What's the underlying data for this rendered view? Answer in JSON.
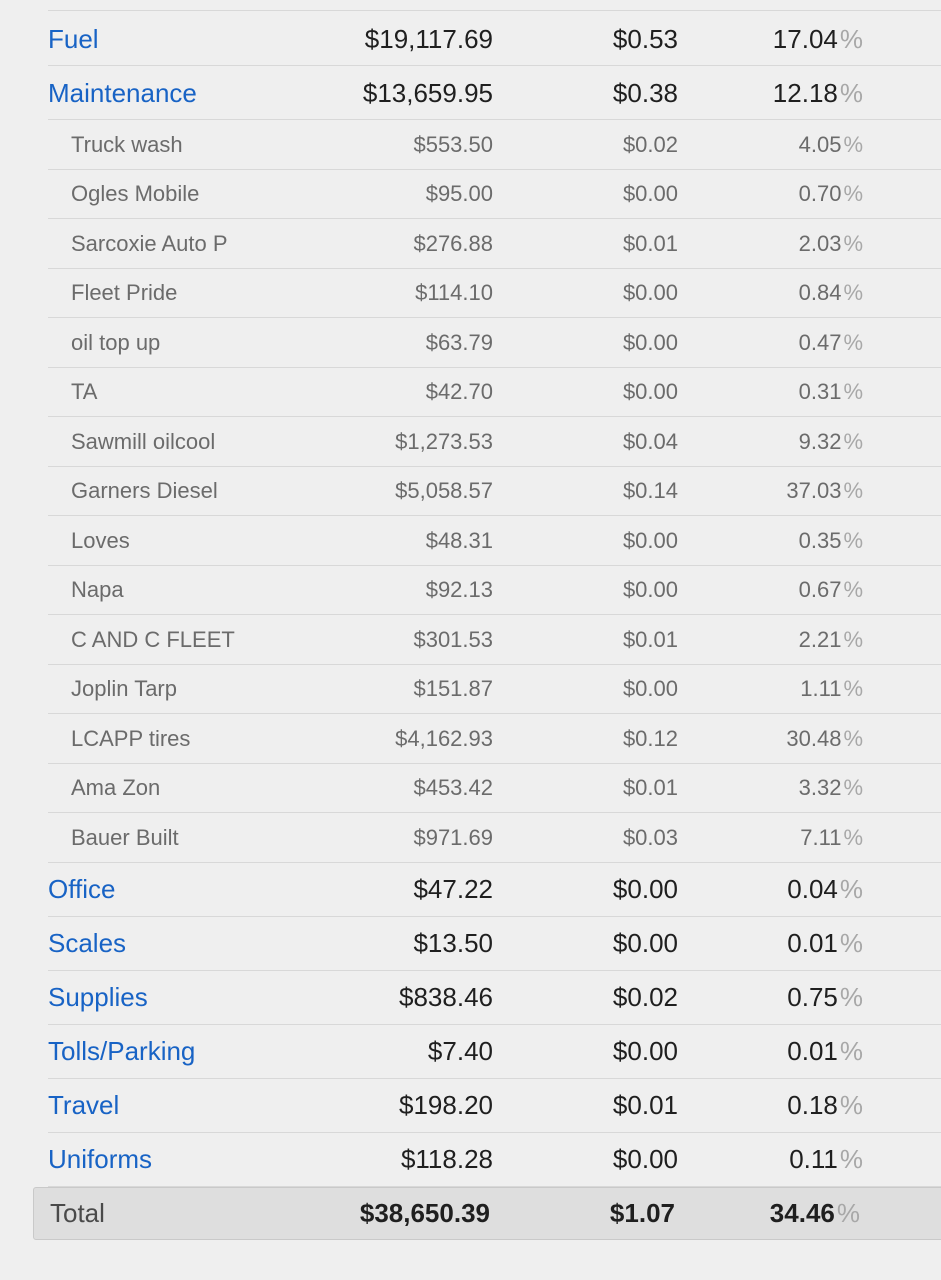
{
  "rows": [
    {
      "type": "cat",
      "name": "Fuel",
      "amount": "$19,117.69",
      "per_mile": "$0.53",
      "percent": "17.04"
    },
    {
      "type": "cat",
      "name": "Maintenance",
      "amount": "$13,659.95",
      "per_mile": "$0.38",
      "percent": "12.18"
    },
    {
      "type": "sub",
      "name": "Truck wash",
      "amount": "$553.50",
      "per_mile": "$0.02",
      "percent": "4.05"
    },
    {
      "type": "sub",
      "name": "Ogles Mobile",
      "amount": "$95.00",
      "per_mile": "$0.00",
      "percent": "0.70"
    },
    {
      "type": "sub",
      "name": "Sarcoxie Auto P",
      "amount": "$276.88",
      "per_mile": "$0.01",
      "percent": "2.03"
    },
    {
      "type": "sub",
      "name": "Fleet Pride",
      "amount": "$114.10",
      "per_mile": "$0.00",
      "percent": "0.84"
    },
    {
      "type": "sub",
      "name": "oil top up",
      "amount": "$63.79",
      "per_mile": "$0.00",
      "percent": "0.47"
    },
    {
      "type": "sub",
      "name": "TA",
      "amount": "$42.70",
      "per_mile": "$0.00",
      "percent": "0.31"
    },
    {
      "type": "sub",
      "name": "Sawmill oilcool",
      "amount": "$1,273.53",
      "per_mile": "$0.04",
      "percent": "9.32"
    },
    {
      "type": "sub",
      "name": "Garners Diesel",
      "amount": "$5,058.57",
      "per_mile": "$0.14",
      "percent": "37.03"
    },
    {
      "type": "sub",
      "name": "Loves",
      "amount": "$48.31",
      "per_mile": "$0.00",
      "percent": "0.35"
    },
    {
      "type": "sub",
      "name": "Napa",
      "amount": "$92.13",
      "per_mile": "$0.00",
      "percent": "0.67"
    },
    {
      "type": "sub",
      "name": "C AND C FLEET",
      "amount": "$301.53",
      "per_mile": "$0.01",
      "percent": "2.21"
    },
    {
      "type": "sub",
      "name": "Joplin Tarp",
      "amount": "$151.87",
      "per_mile": "$0.00",
      "percent": "1.11"
    },
    {
      "type": "sub",
      "name": "LCAPP tires",
      "amount": "$4,162.93",
      "per_mile": "$0.12",
      "percent": "30.48"
    },
    {
      "type": "sub",
      "name": "Ama Zon",
      "amount": "$453.42",
      "per_mile": "$0.01",
      "percent": "3.32"
    },
    {
      "type": "sub",
      "name": "Bauer Built",
      "amount": "$971.69",
      "per_mile": "$0.03",
      "percent": "7.11"
    },
    {
      "type": "cat",
      "name": "Office",
      "amount": "$47.22",
      "per_mile": "$0.00",
      "percent": "0.04"
    },
    {
      "type": "cat",
      "name": "Scales",
      "amount": "$13.50",
      "per_mile": "$0.00",
      "percent": "0.01"
    },
    {
      "type": "cat",
      "name": "Supplies",
      "amount": "$838.46",
      "per_mile": "$0.02",
      "percent": "0.75"
    },
    {
      "type": "cat",
      "name": "Tolls/Parking",
      "amount": "$7.40",
      "per_mile": "$0.00",
      "percent": "0.01"
    },
    {
      "type": "cat",
      "name": "Travel",
      "amount": "$198.20",
      "per_mile": "$0.01",
      "percent": "0.18"
    },
    {
      "type": "cat",
      "name": "Uniforms",
      "amount": "$118.28",
      "per_mile": "$0.00",
      "percent": "0.11"
    }
  ],
  "percent_sign": "%",
  "total": {
    "label": "Total",
    "amount": "$38,650.39",
    "per_mile": "$1.07",
    "percent": "34.46"
  },
  "colors": {
    "link": "#1863c5",
    "background": "#efefef",
    "divider": "#d8d8d8"
  }
}
